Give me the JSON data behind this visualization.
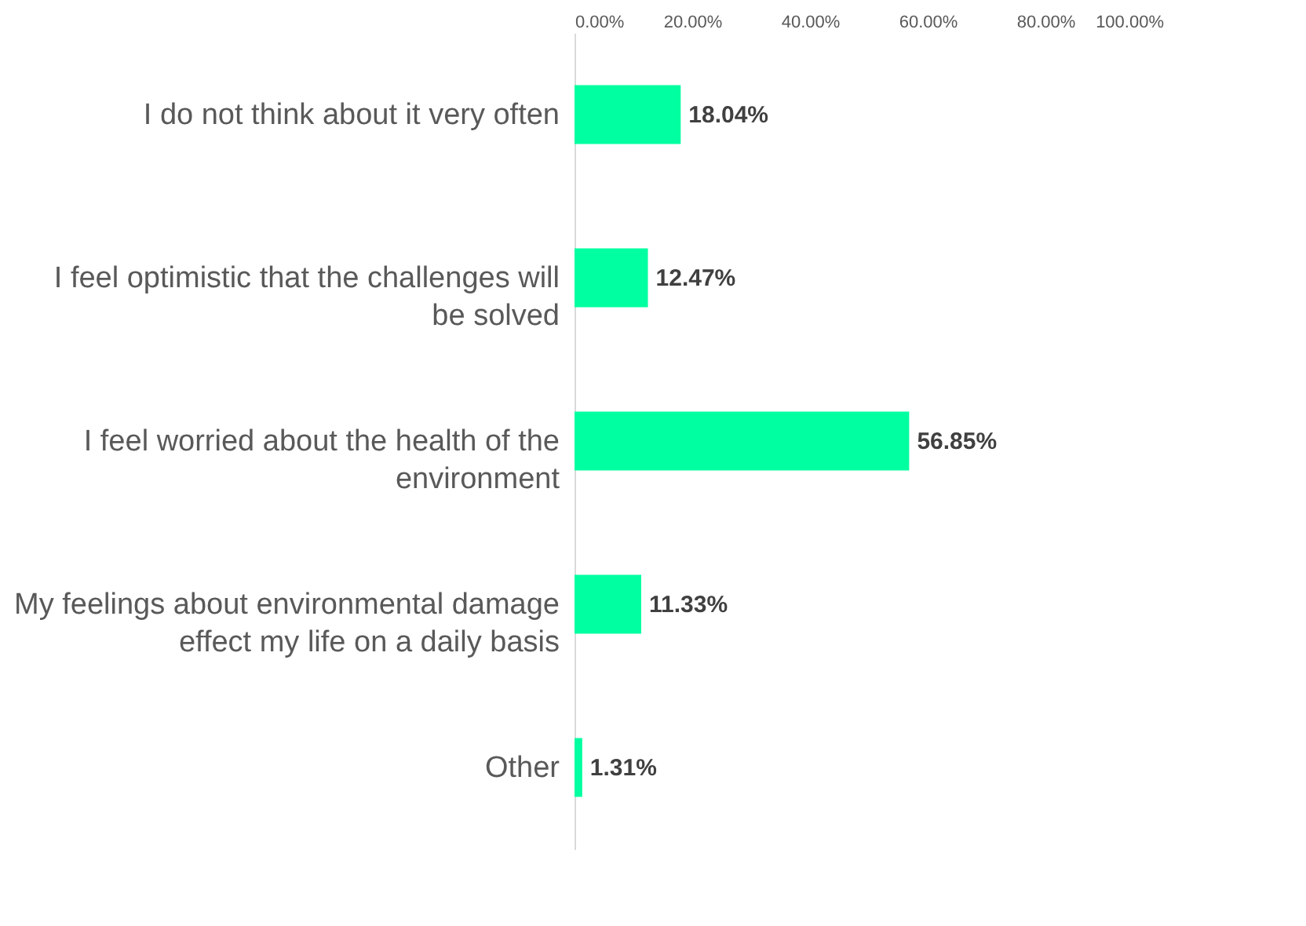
{
  "chart_data": {
    "type": "bar",
    "orientation": "horizontal",
    "categories": [
      "I do not think about it very often",
      "I feel optimistic that the challenges will be solved",
      "I feel worried about the health of the environment",
      "My feelings about environmental damage effect my life on a daily basis",
      "Other"
    ],
    "values": [
      18.04,
      12.47,
      56.85,
      11.33,
      1.31
    ],
    "value_labels": [
      "18.04%",
      "12.47%",
      "56.85%",
      "11.33%",
      "1.31%"
    ],
    "color": "#00ffa0",
    "xlim": [
      0,
      100
    ],
    "xticks": [
      {
        "value": 0,
        "label": "0.00%"
      },
      {
        "value": 20,
        "label": "20.00%"
      },
      {
        "value": 40,
        "label": "40.00%"
      },
      {
        "value": 60,
        "label": "60.00%"
      },
      {
        "value": 80,
        "label": "80.00%"
      },
      {
        "value": 100,
        "label": "100.00%"
      }
    ],
    "grid": false
  }
}
